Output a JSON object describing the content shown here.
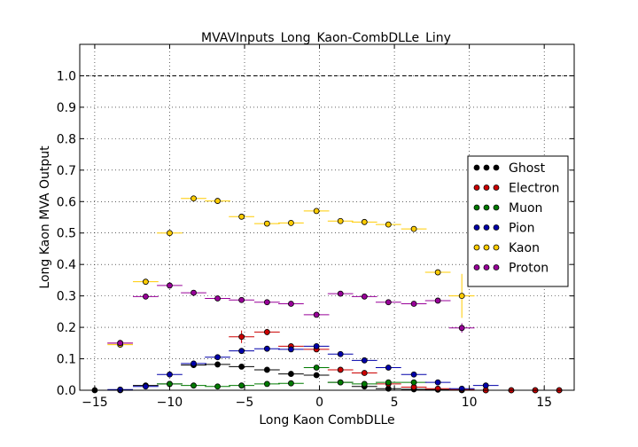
{
  "chart_data": {
    "type": "scatter",
    "title": "MVAVInputs_Long_Kaon-CombDLLe_Liny",
    "xlabel": "Long Kaon CombDLLe",
    "ylabel": "Long Kaon MVA Output",
    "xlim": [
      -16,
      17
    ],
    "ylim": [
      0.0,
      1.1
    ],
    "xticks": [
      -15,
      -10,
      -5,
      0,
      5,
      10,
      15
    ],
    "xtick_labels": [
      "−15",
      "−10",
      "−5",
      "0",
      "5",
      "10",
      "15"
    ],
    "yticks": [
      0.0,
      0.1,
      0.2,
      0.3,
      0.4,
      0.5,
      0.6,
      0.7,
      0.8,
      0.9,
      1.0
    ],
    "ytick_labels": [
      "0.0",
      "0.1",
      "0.2",
      "0.3",
      "0.4",
      "0.5",
      "0.6",
      "0.7",
      "0.8",
      "0.9",
      "1.0"
    ],
    "grid": true,
    "reference_line_y": 1.0,
    "legend_position": "right",
    "bin_half_width": 0.85,
    "series": [
      {
        "name": "Ghost",
        "color": "#000000",
        "points": [
          {
            "x": -15.0,
            "y": 0.0
          },
          {
            "x": -13.3,
            "y": 0.0
          },
          {
            "x": -11.6,
            "y": 0.015
          },
          {
            "x": -10.0,
            "y": 0.02
          },
          {
            "x": -8.4,
            "y": 0.08
          },
          {
            "x": -6.8,
            "y": 0.082
          },
          {
            "x": -5.2,
            "y": 0.075
          },
          {
            "x": -3.5,
            "y": 0.065
          },
          {
            "x": -1.9,
            "y": 0.052
          },
          {
            "x": -0.2,
            "y": 0.048
          },
          {
            "x": 1.4,
            "y": 0.025
          },
          {
            "x": 3.0,
            "y": 0.012
          },
          {
            "x": 4.6,
            "y": 0.005
          },
          {
            "x": 6.3,
            "y": 0.003
          },
          {
            "x": 7.9,
            "y": 0.002
          },
          {
            "x": 9.5,
            "y": 0.0
          },
          {
            "x": 11.1,
            "y": 0.0
          },
          {
            "x": 12.8,
            "y": 0.0
          },
          {
            "x": 14.4,
            "y": 0.0
          },
          {
            "x": 16.0,
            "y": 0.0
          }
        ]
      },
      {
        "name": "Electron",
        "color": "#cc0000",
        "points": [
          {
            "x": -13.3,
            "y": 0.15,
            "yerr": 0.01
          },
          {
            "x": -5.2,
            "y": 0.17,
            "yerr": 0.02
          },
          {
            "x": -3.5,
            "y": 0.185,
            "yerr": 0.01
          },
          {
            "x": -1.9,
            "y": 0.14
          },
          {
            "x": -0.2,
            "y": 0.13
          },
          {
            "x": 1.4,
            "y": 0.065
          },
          {
            "x": 3.0,
            "y": 0.055
          },
          {
            "x": 4.6,
            "y": 0.02
          },
          {
            "x": 6.3,
            "y": 0.01
          },
          {
            "x": 7.9,
            "y": 0.005
          },
          {
            "x": 9.5,
            "y": 0.002
          },
          {
            "x": 11.1,
            "y": 0.0
          },
          {
            "x": 12.8,
            "y": 0.0
          },
          {
            "x": 14.4,
            "y": 0.0
          },
          {
            "x": 16.0,
            "y": 0.0
          }
        ]
      },
      {
        "name": "Muon",
        "color": "#007a00",
        "points": [
          {
            "x": -10.0,
            "y": 0.02
          },
          {
            "x": -8.4,
            "y": 0.015
          },
          {
            "x": -6.8,
            "y": 0.012
          },
          {
            "x": -5.2,
            "y": 0.015
          },
          {
            "x": -3.5,
            "y": 0.02
          },
          {
            "x": -1.9,
            "y": 0.022
          },
          {
            "x": -0.2,
            "y": 0.072
          },
          {
            "x": 1.4,
            "y": 0.025
          },
          {
            "x": 3.0,
            "y": 0.02
          },
          {
            "x": 4.6,
            "y": 0.025
          },
          {
            "x": 6.3,
            "y": 0.025
          }
        ]
      },
      {
        "name": "Pion",
        "color": "#0000aa",
        "points": [
          {
            "x": -13.3,
            "y": 0.002
          },
          {
            "x": -11.6,
            "y": 0.012
          },
          {
            "x": -10.0,
            "y": 0.05
          },
          {
            "x": -8.4,
            "y": 0.085
          },
          {
            "x": -6.8,
            "y": 0.105
          },
          {
            "x": -5.2,
            "y": 0.125
          },
          {
            "x": -3.5,
            "y": 0.132
          },
          {
            "x": -1.9,
            "y": 0.13
          },
          {
            "x": -0.2,
            "y": 0.14
          },
          {
            "x": 1.4,
            "y": 0.115
          },
          {
            "x": 3.0,
            "y": 0.095
          },
          {
            "x": 4.6,
            "y": 0.072
          },
          {
            "x": 6.3,
            "y": 0.05
          },
          {
            "x": 7.9,
            "y": 0.025
          },
          {
            "x": 9.5,
            "y": 0.005
          },
          {
            "x": 11.1,
            "y": 0.015
          }
        ]
      },
      {
        "name": "Kaon",
        "color": "#ffcc00",
        "points": [
          {
            "x": -13.3,
            "y": 0.145
          },
          {
            "x": -11.6,
            "y": 0.345
          },
          {
            "x": -10.0,
            "y": 0.5
          },
          {
            "x": -8.4,
            "y": 0.61
          },
          {
            "x": -6.8,
            "y": 0.602
          },
          {
            "x": -5.2,
            "y": 0.552
          },
          {
            "x": -3.5,
            "y": 0.53
          },
          {
            "x": -1.9,
            "y": 0.532
          },
          {
            "x": -0.2,
            "y": 0.57
          },
          {
            "x": 1.4,
            "y": 0.538
          },
          {
            "x": 3.0,
            "y": 0.535
          },
          {
            "x": 4.6,
            "y": 0.527
          },
          {
            "x": 6.3,
            "y": 0.513
          },
          {
            "x": 7.9,
            "y": 0.375
          },
          {
            "x": 9.5,
            "y": 0.3,
            "yerr": 0.07
          }
        ]
      },
      {
        "name": "Proton",
        "color": "#990099",
        "points": [
          {
            "x": -13.3,
            "y": 0.15
          },
          {
            "x": -11.6,
            "y": 0.298
          },
          {
            "x": -10.0,
            "y": 0.333
          },
          {
            "x": -8.4,
            "y": 0.31
          },
          {
            "x": -6.8,
            "y": 0.292
          },
          {
            "x": -5.2,
            "y": 0.287
          },
          {
            "x": -3.5,
            "y": 0.28
          },
          {
            "x": -1.9,
            "y": 0.275
          },
          {
            "x": -0.2,
            "y": 0.24
          },
          {
            "x": 1.4,
            "y": 0.307
          },
          {
            "x": 3.0,
            "y": 0.298
          },
          {
            "x": 4.6,
            "y": 0.28
          },
          {
            "x": 6.3,
            "y": 0.275
          },
          {
            "x": 7.9,
            "y": 0.285
          },
          {
            "x": 9.5,
            "y": 0.198,
            "yerr": 0.015
          }
        ]
      }
    ]
  }
}
